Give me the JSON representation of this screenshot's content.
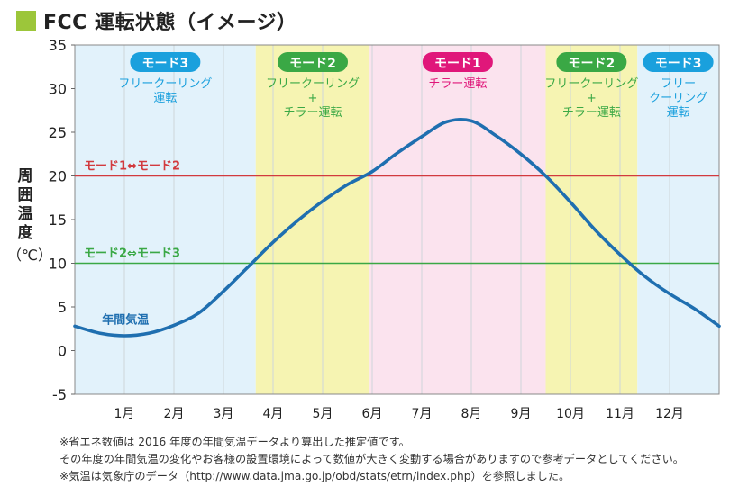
{
  "title": "FCC 運転状態（イメージ）",
  "colors": {
    "title_square": "#9cc63a",
    "blue_band": "#e2f2fb",
    "yellow_band": "#f6f4b2",
    "pink_band": "#fbe3ee",
    "curve": "#1f6fb0",
    "red_line": "#d23a3e",
    "green_line": "#3aa845",
    "badge_blue": "#1aa0dd",
    "badge_green": "#3aa845",
    "badge_pink": "#e0177a"
  },
  "notes": [
    "※省エネ数値は 2016 年度の年間気温データより算出した推定値です。",
    "その年度の年間気温の変化やお客様の設置環境によって数値が大きく変動する場合がありますので参考データとしてください。",
    "※気温は気象庁のデータ（http://www.data.jma.go.jp/obd/stats/etrn/index.php）を参照しました。"
  ],
  "chart_data": {
    "type": "line",
    "ylabel": [
      "周",
      "囲",
      "温",
      "度"
    ],
    "ylabel_unit": "（℃）",
    "xlabel": "",
    "categories": [
      "1月",
      "2月",
      "3月",
      "4月",
      "5月",
      "6月",
      "7月",
      "8月",
      "9月",
      "10月",
      "11月",
      "12月"
    ],
    "ylim": [
      -5,
      35
    ],
    "yticks": [
      "35",
      "30",
      "25",
      "20",
      "15",
      "10",
      "5",
      "0",
      "-5"
    ],
    "xlim_months": [
      0,
      13
    ],
    "grid": "vertical",
    "series": [
      {
        "name": "年間気温",
        "x": [
          0,
          0.5,
          1,
          1.5,
          2,
          2.5,
          3,
          3.5,
          4,
          4.5,
          5,
          5.5,
          6,
          6.5,
          7,
          7.5,
          8,
          8.5,
          9,
          9.5,
          10,
          10.5,
          11,
          11.5,
          12,
          12.5,
          13
        ],
        "values": [
          2.8,
          2.0,
          1.7,
          2.0,
          2.9,
          4.3,
          6.8,
          9.6,
          12.4,
          14.9,
          17.1,
          19.0,
          20.5,
          22.6,
          24.5,
          26.2,
          26.3,
          24.6,
          22.5,
          20.0,
          17.0,
          13.8,
          11.0,
          8.5,
          6.5,
          4.8,
          2.8
        ]
      }
    ],
    "threshold_lines": [
      {
        "label": "モード1⇔モード2",
        "value": 20
      },
      {
        "label": "モード2⇔モード3",
        "value": 10
      }
    ],
    "bands": [
      {
        "from": 0,
        "to": 3.65,
        "badge": "モード3",
        "lines": [
          "フリークーリング",
          "運転"
        ]
      },
      {
        "from": 3.65,
        "to": 5.95,
        "badge": "モード2",
        "lines": [
          "フリークーリング",
          "+",
          "チラー運転"
        ]
      },
      {
        "from": 5.95,
        "to": 9.5,
        "badge": "モード1",
        "lines": [
          "チラー運転"
        ]
      },
      {
        "from": 9.5,
        "to": 11.35,
        "badge": "モード2",
        "lines": [
          "フリークーリング",
          "+",
          "チラー運転"
        ]
      },
      {
        "from": 11.35,
        "to": 13,
        "badge": "モード3",
        "lines": [
          "フリー",
          "クーリング",
          "運転"
        ]
      }
    ]
  }
}
